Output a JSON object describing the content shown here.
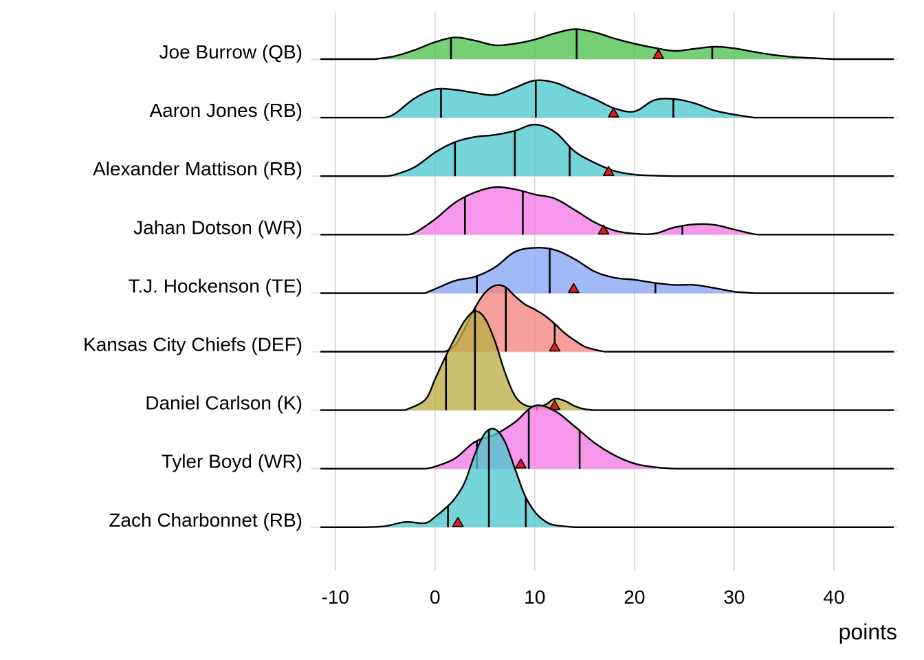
{
  "chart_data": {
    "type": "ridgeline",
    "xlabel": "points",
    "xlim": [
      -11.5,
      46
    ],
    "x_ticks": [
      -10,
      0,
      10,
      20,
      30,
      40
    ],
    "x_tick_labels": [
      "-10",
      "0",
      "10",
      "20",
      "30",
      "40"
    ],
    "grid": true,
    "marker": "red triangle (actual score)",
    "quantile_lines": "black vertical lines inside each density (quartiles)",
    "players": [
      {
        "name": "Joe Burrow (QB)",
        "color": "#4DC14F",
        "quantiles": [
          1.6,
          14.2,
          27.8
        ],
        "actual": 22.4,
        "density": [
          [
            -6,
            0
          ],
          [
            -4,
            0.06
          ],
          [
            -2,
            0.18
          ],
          [
            0,
            0.33
          ],
          [
            2,
            0.42
          ],
          [
            4,
            0.36
          ],
          [
            6,
            0.27
          ],
          [
            8,
            0.3
          ],
          [
            10,
            0.38
          ],
          [
            12,
            0.5
          ],
          [
            14,
            0.58
          ],
          [
            16,
            0.52
          ],
          [
            18,
            0.4
          ],
          [
            20,
            0.3
          ],
          [
            22,
            0.22
          ],
          [
            24,
            0.16
          ],
          [
            26,
            0.2
          ],
          [
            28,
            0.24
          ],
          [
            30,
            0.21
          ],
          [
            32,
            0.14
          ],
          [
            34,
            0.08
          ],
          [
            36,
            0.04
          ],
          [
            38,
            0.02
          ],
          [
            40,
            0
          ]
        ]
      },
      {
        "name": "Aaron Jones (RB)",
        "color": "#4DC8CC",
        "quantiles": [
          0.6,
          10.1,
          23.9
        ],
        "actual": 17.9,
        "density": [
          [
            -5,
            0
          ],
          [
            -4,
            0.08
          ],
          [
            -2,
            0.38
          ],
          [
            0,
            0.55
          ],
          [
            2,
            0.54
          ],
          [
            4,
            0.48
          ],
          [
            6,
            0.44
          ],
          [
            8,
            0.58
          ],
          [
            10,
            0.72
          ],
          [
            12,
            0.68
          ],
          [
            14,
            0.52
          ],
          [
            16,
            0.36
          ],
          [
            18,
            0.18
          ],
          [
            20,
            0.12
          ],
          [
            22,
            0.34
          ],
          [
            24,
            0.36
          ],
          [
            26,
            0.28
          ],
          [
            28,
            0.14
          ],
          [
            30,
            0.06
          ],
          [
            32,
            0
          ]
        ]
      },
      {
        "name": "Alexander Mattison (RB)",
        "color": "#4DC8CC",
        "quantiles": [
          2.0,
          8.0,
          13.5
        ],
        "actual": 17.4,
        "density": [
          [
            -5,
            0
          ],
          [
            -4,
            0.03
          ],
          [
            -2,
            0.18
          ],
          [
            0,
            0.46
          ],
          [
            2,
            0.66
          ],
          [
            4,
            0.76
          ],
          [
            6,
            0.8
          ],
          [
            8,
            0.88
          ],
          [
            10,
            1.0
          ],
          [
            12,
            0.86
          ],
          [
            14,
            0.48
          ],
          [
            16,
            0.26
          ],
          [
            18,
            0.1
          ],
          [
            20,
            0.03
          ],
          [
            22,
            0.01
          ],
          [
            24,
            0
          ]
        ]
      },
      {
        "name": "Jahan Dotson (WR)",
        "color": "#F27BE6",
        "quantiles": [
          3.0,
          8.8,
          24.8
        ],
        "actual": 16.9,
        "density": [
          [
            -3,
            0
          ],
          [
            -2,
            0.04
          ],
          [
            0,
            0.3
          ],
          [
            2,
            0.62
          ],
          [
            4,
            0.82
          ],
          [
            6,
            0.92
          ],
          [
            8,
            0.88
          ],
          [
            10,
            0.78
          ],
          [
            12,
            0.7
          ],
          [
            14,
            0.48
          ],
          [
            16,
            0.24
          ],
          [
            18,
            0.08
          ],
          [
            20,
            0.02
          ],
          [
            22,
            0.02
          ],
          [
            24,
            0.14
          ],
          [
            26,
            0.2
          ],
          [
            28,
            0.19
          ],
          [
            30,
            0.1
          ],
          [
            32,
            0.01
          ],
          [
            33,
            0
          ]
        ]
      },
      {
        "name": "T.J. Hockenson (TE)",
        "color": "#86A6F5",
        "quantiles": [
          4.2,
          11.5,
          22.1
        ],
        "actual": 13.9,
        "density": [
          [
            -1,
            0
          ],
          [
            0,
            0.08
          ],
          [
            2,
            0.24
          ],
          [
            4,
            0.32
          ],
          [
            6,
            0.5
          ],
          [
            8,
            0.8
          ],
          [
            10,
            0.88
          ],
          [
            12,
            0.84
          ],
          [
            14,
            0.66
          ],
          [
            16,
            0.42
          ],
          [
            18,
            0.3
          ],
          [
            20,
            0.26
          ],
          [
            22,
            0.2
          ],
          [
            24,
            0.16
          ],
          [
            26,
            0.16
          ],
          [
            28,
            0.1
          ],
          [
            30,
            0.03
          ],
          [
            32,
            0
          ]
        ]
      },
      {
        "name": "Kansas City Chiefs (DEF)",
        "color": "#F38581",
        "quantiles": [
          4.0,
          7.1,
          12.0
        ],
        "actual": 12.0,
        "density": [
          [
            1,
            0
          ],
          [
            2,
            0.12
          ],
          [
            3,
            0.46
          ],
          [
            4,
            0.85
          ],
          [
            5,
            1.14
          ],
          [
            6,
            1.28
          ],
          [
            7,
            1.26
          ],
          [
            8,
            1.08
          ],
          [
            9,
            0.92
          ],
          [
            10,
            0.82
          ],
          [
            11,
            0.7
          ],
          [
            12,
            0.54
          ],
          [
            13,
            0.36
          ],
          [
            14,
            0.22
          ],
          [
            15,
            0.1
          ],
          [
            16,
            0.04
          ],
          [
            17,
            0
          ]
        ]
      },
      {
        "name": "Daniel Carlson (K)",
        "color": "#BBAE45",
        "quantiles": [
          1.1,
          4.0,
          10.2
        ],
        "actual": 12.0,
        "density": [
          [
            -3,
            0
          ],
          [
            -1,
            0.2
          ],
          [
            0,
            0.6
          ],
          [
            1,
            1.02
          ],
          [
            2,
            1.4
          ],
          [
            3,
            1.74
          ],
          [
            4,
            1.92
          ],
          [
            5,
            1.78
          ],
          [
            6,
            1.34
          ],
          [
            7,
            0.74
          ],
          [
            8,
            0.28
          ],
          [
            9,
            0.1
          ],
          [
            10,
            0.07
          ],
          [
            11,
            0.1
          ],
          [
            12,
            0.22
          ],
          [
            13,
            0.18
          ],
          [
            14,
            0.08
          ],
          [
            15,
            0.02
          ],
          [
            16,
            0
          ]
        ]
      },
      {
        "name": "Tyler Boyd (WR)",
        "color": "#F27BE6",
        "quantiles": [
          4.2,
          9.4,
          14.5
        ],
        "actual": 8.6,
        "density": [
          [
            -1,
            0
          ],
          [
            0,
            0.04
          ],
          [
            2,
            0.2
          ],
          [
            4,
            0.52
          ],
          [
            6,
            0.66
          ],
          [
            8,
            0.9
          ],
          [
            10,
            1.22
          ],
          [
            12,
            1.12
          ],
          [
            14,
            0.82
          ],
          [
            16,
            0.5
          ],
          [
            18,
            0.26
          ],
          [
            20,
            0.1
          ],
          [
            22,
            0.03
          ],
          [
            24,
            0
          ]
        ]
      },
      {
        "name": "Zach Charbonnet (RB)",
        "color": "#4DC8CC",
        "quantiles": [
          1.3,
          5.4,
          9.1
        ],
        "actual": 2.3,
        "density": [
          [
            -7,
            0
          ],
          [
            -5,
            0.02
          ],
          [
            -3,
            0.1
          ],
          [
            -1,
            0.08
          ],
          [
            0,
            0.2
          ],
          [
            1,
            0.36
          ],
          [
            2,
            0.56
          ],
          [
            3,
            0.88
          ],
          [
            4,
            1.42
          ],
          [
            5,
            1.82
          ],
          [
            6,
            1.9
          ],
          [
            7,
            1.66
          ],
          [
            8,
            1.14
          ],
          [
            9,
            0.62
          ],
          [
            10,
            0.3
          ],
          [
            11,
            0.12
          ],
          [
            12,
            0.04
          ],
          [
            14,
            0
          ]
        ]
      }
    ]
  }
}
